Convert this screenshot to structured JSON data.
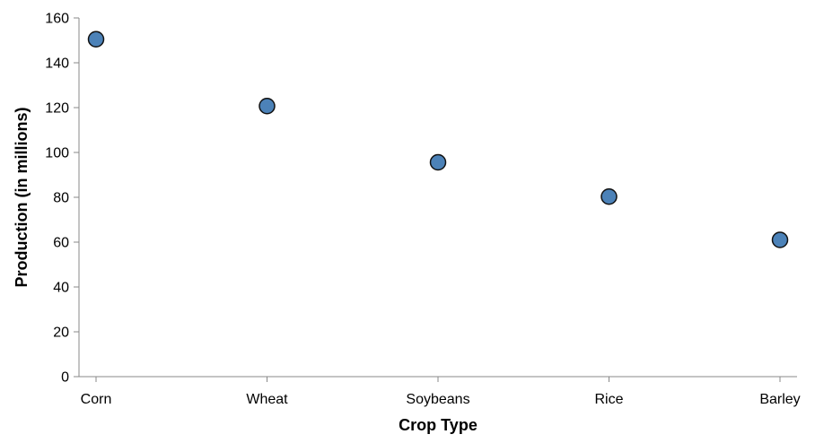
{
  "chart_data": {
    "type": "scatter",
    "categories": [
      "Corn",
      "Wheat",
      "Soybeans",
      "Rice",
      "Barley"
    ],
    "values": [
      150.5,
      120.7,
      95.6,
      80.3,
      61.0
    ],
    "title": "",
    "xlabel": "Crop Type",
    "ylabel": "Production (in millions)",
    "ylim": [
      0,
      160
    ],
    "yticks": [
      0,
      20,
      40,
      60,
      80,
      100,
      120,
      140,
      160
    ],
    "grid": false,
    "colors": {
      "point_fill": "#4c82b8",
      "point_stroke": "#111111",
      "axis": "#888888"
    }
  }
}
